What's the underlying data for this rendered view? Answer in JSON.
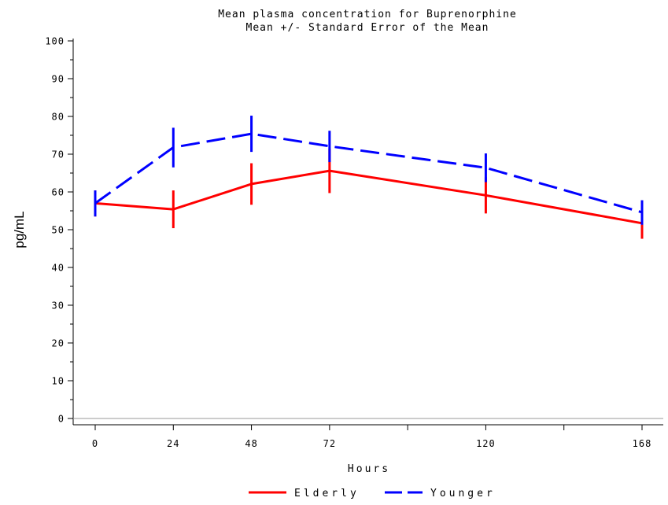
{
  "chart_data": {
    "type": "line",
    "title": "Mean plasma concentration for Buprenorphine",
    "subtitle": "Mean +/- Standard Error of the Mean",
    "xlabel": "Hours",
    "ylabel": "pg/mL",
    "x": [
      0,
      24,
      48,
      72,
      120,
      168
    ],
    "x_ticks": [
      0,
      24,
      48,
      72,
      96,
      120,
      144,
      168
    ],
    "x_tick_labels": [
      "0",
      "24",
      "48",
      "72",
      "",
      "120",
      "",
      "168"
    ],
    "xlim": [
      0,
      168
    ],
    "ylim": [
      0,
      100
    ],
    "y_ticks": [
      0,
      10,
      20,
      30,
      40,
      50,
      60,
      70,
      80,
      90,
      100
    ],
    "y_minor_step": 5,
    "grid": false,
    "reference_line_y": 0,
    "legend_position": "bottom",
    "series": [
      {
        "name": "Elderly",
        "color": "#ff0000",
        "dash": "solid",
        "values": [
          57.0,
          55.4,
          62.1,
          65.6,
          59.1,
          51.7
        ],
        "err_low": [
          53.5,
          50.4,
          56.6,
          59.7,
          54.3,
          47.6
        ],
        "err_high": [
          60.4,
          60.4,
          67.6,
          71.5,
          63.9,
          55.8
        ]
      },
      {
        "name": "Younger",
        "color": "#0000ff",
        "dash": "dashed",
        "values": [
          57.0,
          71.8,
          75.4,
          72.1,
          66.4,
          54.6
        ],
        "err_low": [
          53.5,
          66.5,
          70.6,
          67.9,
          62.6,
          51.3
        ],
        "err_high": [
          60.4,
          77.0,
          80.2,
          76.2,
          70.2,
          57.8
        ]
      }
    ]
  }
}
